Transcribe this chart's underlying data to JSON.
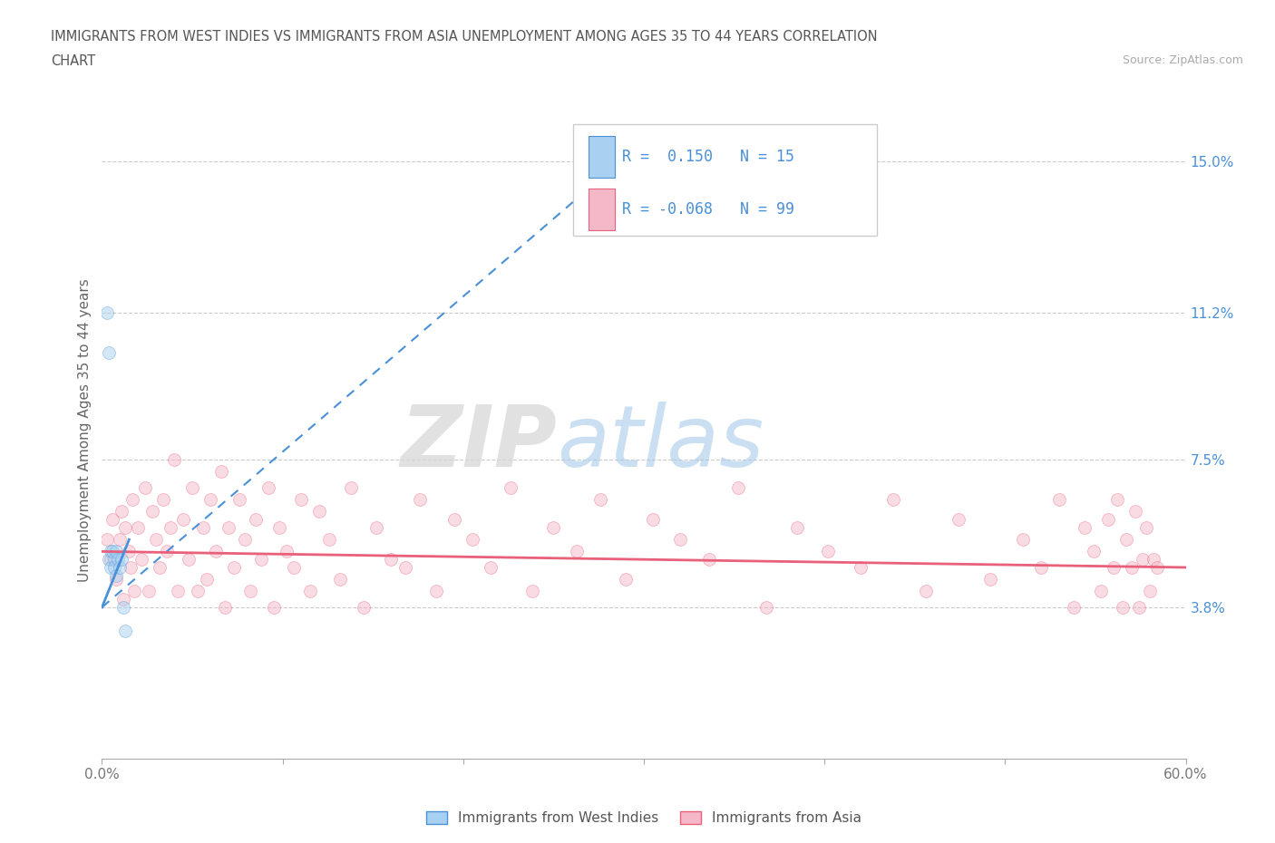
{
  "title_line1": "IMMIGRANTS FROM WEST INDIES VS IMMIGRANTS FROM ASIA UNEMPLOYMENT AMONG AGES 35 TO 44 YEARS CORRELATION",
  "title_line2": "CHART",
  "source_text": "Source: ZipAtlas.com",
  "ylabel": "Unemployment Among Ages 35 to 44 years",
  "xlim": [
    0.0,
    0.6
  ],
  "ylim": [
    0.0,
    0.165
  ],
  "right_yticks": [
    0.038,
    0.075,
    0.112,
    0.15
  ],
  "right_yticklabels": [
    "3.8%",
    "7.5%",
    "11.2%",
    "15.0%"
  ],
  "color_blue": "#A8D0F0",
  "color_pink": "#F5B8C8",
  "trendline_blue": "#4A90D9",
  "trendline_pink": "#E8607A",
  "R_blue": 0.15,
  "N_blue": 15,
  "R_pink": -0.068,
  "N_pink": 99,
  "legend_label_blue": "Immigrants from West Indies",
  "legend_label_pink": "Immigrants from Asia",
  "watermark_zip": "ZIP",
  "watermark_atlas": "atlas",
  "background_color": "#FFFFFF",
  "scatter_alpha": 0.5,
  "scatter_size": 100,
  "west_indies_x": [
    0.003,
    0.004,
    0.004,
    0.005,
    0.005,
    0.006,
    0.007,
    0.007,
    0.008,
    0.008,
    0.009,
    0.01,
    0.011,
    0.012,
    0.013
  ],
  "west_indies_y": [
    0.112,
    0.102,
    0.05,
    0.052,
    0.048,
    0.052,
    0.05,
    0.048,
    0.052,
    0.046,
    0.05,
    0.048,
    0.05,
    0.038,
    0.032
  ],
  "asia_x": [
    0.003,
    0.005,
    0.006,
    0.008,
    0.01,
    0.011,
    0.012,
    0.013,
    0.015,
    0.016,
    0.017,
    0.018,
    0.02,
    0.022,
    0.024,
    0.026,
    0.028,
    0.03,
    0.032,
    0.034,
    0.036,
    0.038,
    0.04,
    0.042,
    0.045,
    0.048,
    0.05,
    0.053,
    0.056,
    0.058,
    0.06,
    0.063,
    0.066,
    0.068,
    0.07,
    0.073,
    0.076,
    0.079,
    0.082,
    0.085,
    0.088,
    0.092,
    0.095,
    0.098,
    0.102,
    0.106,
    0.11,
    0.115,
    0.12,
    0.126,
    0.132,
    0.138,
    0.145,
    0.152,
    0.16,
    0.168,
    0.176,
    0.185,
    0.195,
    0.205,
    0.215,
    0.226,
    0.238,
    0.25,
    0.263,
    0.276,
    0.29,
    0.305,
    0.32,
    0.336,
    0.352,
    0.368,
    0.385,
    0.402,
    0.42,
    0.438,
    0.456,
    0.474,
    0.492,
    0.51,
    0.52,
    0.53,
    0.538,
    0.544,
    0.549,
    0.553,
    0.557,
    0.56,
    0.562,
    0.565,
    0.567,
    0.57,
    0.572,
    0.574,
    0.576,
    0.578,
    0.58,
    0.582,
    0.584
  ],
  "asia_y": [
    0.055,
    0.05,
    0.06,
    0.045,
    0.055,
    0.062,
    0.04,
    0.058,
    0.052,
    0.048,
    0.065,
    0.042,
    0.058,
    0.05,
    0.068,
    0.042,
    0.062,
    0.055,
    0.048,
    0.065,
    0.052,
    0.058,
    0.075,
    0.042,
    0.06,
    0.05,
    0.068,
    0.042,
    0.058,
    0.045,
    0.065,
    0.052,
    0.072,
    0.038,
    0.058,
    0.048,
    0.065,
    0.055,
    0.042,
    0.06,
    0.05,
    0.068,
    0.038,
    0.058,
    0.052,
    0.048,
    0.065,
    0.042,
    0.062,
    0.055,
    0.045,
    0.068,
    0.038,
    0.058,
    0.05,
    0.048,
    0.065,
    0.042,
    0.06,
    0.055,
    0.048,
    0.068,
    0.042,
    0.058,
    0.052,
    0.065,
    0.045,
    0.06,
    0.055,
    0.05,
    0.068,
    0.038,
    0.058,
    0.052,
    0.048,
    0.065,
    0.042,
    0.06,
    0.045,
    0.055,
    0.048,
    0.065,
    0.038,
    0.058,
    0.052,
    0.042,
    0.06,
    0.048,
    0.065,
    0.038,
    0.055,
    0.048,
    0.062,
    0.038,
    0.05,
    0.058,
    0.042,
    0.05,
    0.048
  ],
  "blue_trend_x0": 0.0,
  "blue_trend_y0": 0.038,
  "blue_trend_x1": 0.3,
  "blue_trend_y1": 0.155,
  "pink_trend_x0": 0.0,
  "pink_trend_y0": 0.052,
  "pink_trend_x1": 0.6,
  "pink_trend_y1": 0.048
}
